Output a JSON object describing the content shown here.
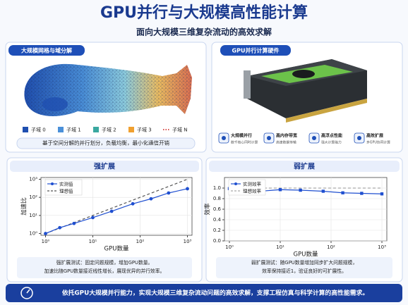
{
  "header": {
    "title": "GPU并行与大规模高性能计算",
    "subtitle": "面向大规模三维复杂流动的高效求解"
  },
  "mesh_panel": {
    "title": "大规模网格与域分解",
    "legend": [
      {
        "label": "子域 0",
        "color": "#1f4fb0"
      },
      {
        "label": "子域 1",
        "color": "#4a90d9"
      },
      {
        "label": "子域 2",
        "color": "#3aa8a0"
      },
      {
        "label": "子域 3",
        "color": "#f0a030"
      },
      {
        "label": "子域 N",
        "color": "#d9534f"
      }
    ],
    "note": "基于空间分解的并行划分，负载均衡，最小化通信开销"
  },
  "hardware_panel": {
    "title": "GPU并行计算硬件",
    "features": [
      {
        "title": "大规模并行",
        "desc": "数千核心同时计算"
      },
      {
        "title": "高内存带宽",
        "desc": "高速数据传输"
      },
      {
        "title": "高浮点性能",
        "desc": "强大计算能力"
      },
      {
        "title": "高效扩展",
        "desc": "多GPU协同计算"
      }
    ]
  },
  "chart_data": [
    {
      "type": "line",
      "title": "强扩展",
      "xlabel": "GPU数量",
      "ylabel": "加速比",
      "xscale": "log",
      "yscale": "log",
      "x": [
        1,
        2,
        4,
        10,
        25,
        70,
        170,
        400,
        1000
      ],
      "series": [
        {
          "name": "实测值",
          "color": "#1f4fd0",
          "marker": "circle",
          "values": [
            1,
            2.1,
            3.6,
            7.6,
            17,
            44,
            83,
            174,
            300
          ]
        },
        {
          "name": "理想值",
          "color": "#555555",
          "dash": true,
          "values": [
            1,
            2,
            4,
            10,
            25,
            70,
            170,
            400,
            1000
          ]
        }
      ],
      "xlim": [
        0.8,
        1250
      ],
      "ylim": [
        0.8,
        1250
      ],
      "xticks": [
        {
          "value": 1,
          "label": "10⁰"
        },
        {
          "value": 10,
          "label": "10¹"
        },
        {
          "value": 100,
          "label": "10²"
        },
        {
          "value": 1000,
          "label": "10³"
        }
      ],
      "yticks": [
        {
          "value": 1,
          "label": "10⁰"
        },
        {
          "value": 10,
          "label": "10¹"
        },
        {
          "value": 100,
          "label": "10²"
        },
        {
          "value": 1000,
          "label": "10³"
        }
      ],
      "grid": true,
      "legend": "upper left",
      "caption": [
        "强扩展测试：固定问题规模，增加GPU数量。",
        "加速比随GPU数量接近线性增长，展现优异的并行效率。"
      ]
    },
    {
      "type": "line",
      "title": "弱扩展",
      "xlabel": "GPU数量",
      "ylabel": "效率",
      "xscale": "log",
      "yscale": "linear",
      "x": [
        1,
        2,
        4,
        10,
        25,
        70,
        170,
        400,
        1000
      ],
      "series": [
        {
          "name": "实测效率",
          "color": "#1f4fd0",
          "marker": "square",
          "values": [
            0.99,
            0.97,
            0.94,
            0.97,
            0.96,
            0.94,
            0.91,
            0.9,
            0.89
          ]
        },
        {
          "name": "理想效率",
          "color": "#aaaaaa",
          "dash": true,
          "values": [
            1,
            1,
            1,
            1,
            1,
            1,
            1,
            1,
            1
          ]
        }
      ],
      "xlim": [
        0.8,
        1250
      ],
      "ylim": [
        0,
        1.2
      ],
      "xticks": [
        {
          "value": 1,
          "label": "10⁰"
        },
        {
          "value": 10,
          "label": "10¹"
        },
        {
          "value": 100,
          "label": "10²"
        },
        {
          "value": 1000,
          "label": "10³"
        }
      ],
      "yticks": [
        {
          "value": 0,
          "label": "0.0"
        },
        {
          "value": 0.2,
          "label": "0.2"
        },
        {
          "value": 0.4,
          "label": "0.4"
        },
        {
          "value": 0.6,
          "label": "0.6"
        },
        {
          "value": 0.8,
          "label": "0.8"
        },
        {
          "value": 1,
          "label": "1.0"
        }
      ],
      "grid": true,
      "legend": "upper left",
      "caption": [
        "弱扩展测试：随GPU数量增加同步扩大问题规模，",
        "效率保持接近1，验证良好的可扩展性。"
      ]
    }
  ],
  "footer": {
    "text": "依托GPU大规模并行能力，实现大规模三维复杂流动问题的高效求解，支撑工程仿真与科学计算的高性能需求。"
  }
}
